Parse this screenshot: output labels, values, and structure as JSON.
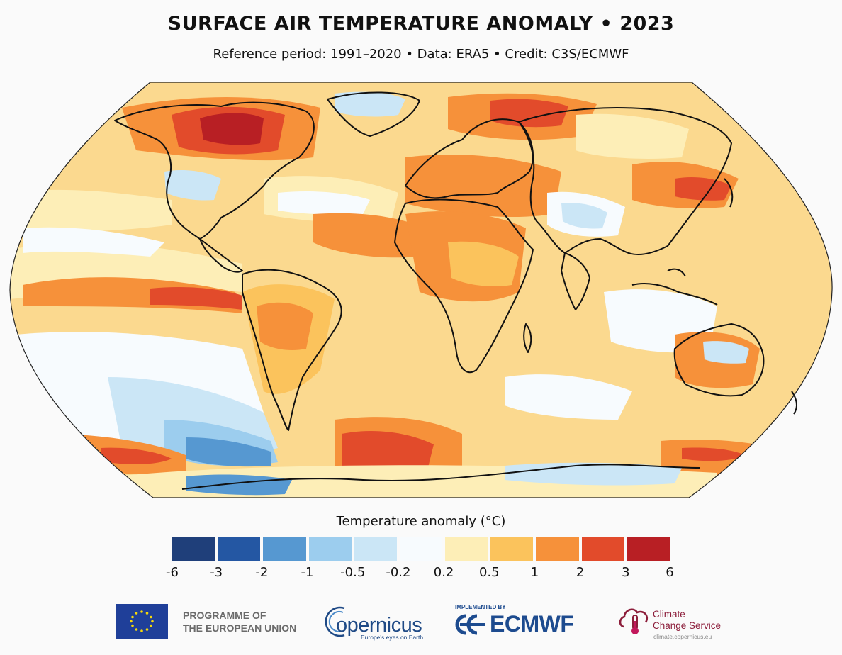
{
  "header": {
    "title": "SURFACE AIR TEMPERATURE ANOMALY • 2023",
    "subtitle": "Reference period: 1991–2020 • Data: ERA5 • Credit: C3S/ECMWF"
  },
  "colorbar": {
    "title": "Temperature anomaly (°C)",
    "ticks": [
      "-6",
      "-3",
      "-2",
      "-1",
      "-0.5",
      "-0.2",
      "0.2",
      "0.5",
      "1",
      "2",
      "3",
      "6"
    ],
    "colors": [
      "#1f3f7a",
      "#2457a3",
      "#5698d1",
      "#9ccdee",
      "#cbe6f6",
      "#f7fbfe",
      "#fdeeb7",
      "#fbc35c",
      "#f6913a",
      "#e24b2b",
      "#b81f24"
    ]
  },
  "map": {
    "ocean_base": "#fbd98f",
    "land_outline": "#111111",
    "hotspots": {
      "strong_warm": "#e24b2b",
      "very_warm": "#b81f24",
      "warm": "#f6913a",
      "mild": "#fbc35c",
      "cool": "#cbe6f6",
      "cold": "#5698d1",
      "neutral": "#f7fbfe"
    }
  },
  "logos": {
    "eu_line1": "PROGRAMME OF",
    "eu_line2": "THE EUROPEAN UNION",
    "copernicus": "opernicus",
    "copernicus_tagline": "Europe's eyes on Earth",
    "ecmwf_implemented": "IMPLEMENTED BY",
    "ecmwf": "ECMWF",
    "c3s_line1": "Climate",
    "c3s_line2": "Change Service",
    "c3s_url": "climate.copernicus.eu"
  }
}
